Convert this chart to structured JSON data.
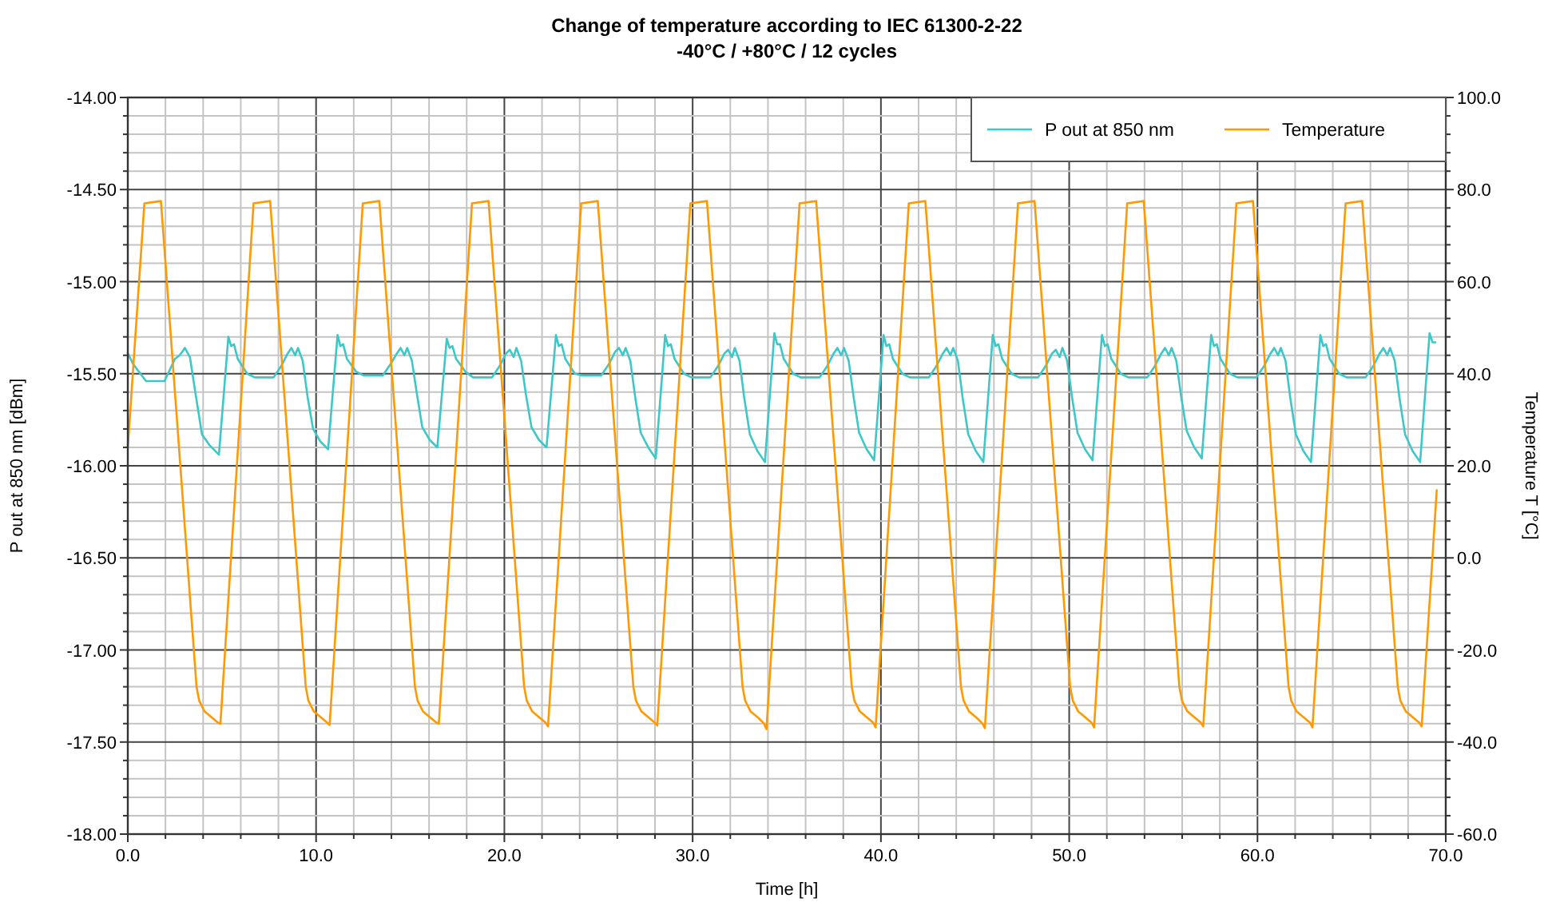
{
  "chart_data": {
    "type": "line",
    "title": "Change of temperature according to IEC 61300-2-22",
    "subtitle": "-40°C / +80°C / 12 cycles",
    "xlabel": "Time [h]",
    "ylabel": "P out at 850 nm [dBm]",
    "y2label": "Temperature T [°C]",
    "xlim": [
      0,
      70
    ],
    "ylim": [
      -18,
      -14
    ],
    "y2lim": [
      -60,
      100
    ],
    "xticks": [
      {
        "value": 0,
        "label": "0.0"
      },
      {
        "value": 2,
        "label": null
      },
      {
        "value": 4,
        "label": null
      },
      {
        "value": 6,
        "label": null
      },
      {
        "value": 8,
        "label": null
      },
      {
        "value": 10,
        "label": "10.0"
      },
      {
        "value": 12,
        "label": null
      },
      {
        "value": 14,
        "label": null
      },
      {
        "value": 16,
        "label": null
      },
      {
        "value": 18,
        "label": null
      },
      {
        "value": 20,
        "label": "20.0"
      },
      {
        "value": 22,
        "label": null
      },
      {
        "value": 24,
        "label": null
      },
      {
        "value": 26,
        "label": null
      },
      {
        "value": 28,
        "label": null
      },
      {
        "value": 30,
        "label": "30.0"
      },
      {
        "value": 32,
        "label": null
      },
      {
        "value": 34,
        "label": null
      },
      {
        "value": 36,
        "label": null
      },
      {
        "value": 38,
        "label": null
      },
      {
        "value": 40,
        "label": "40.0"
      },
      {
        "value": 42,
        "label": null
      },
      {
        "value": 44,
        "label": null
      },
      {
        "value": 46,
        "label": null
      },
      {
        "value": 48,
        "label": null
      },
      {
        "value": 50,
        "label": "50.0"
      },
      {
        "value": 52,
        "label": null
      },
      {
        "value": 54,
        "label": null
      },
      {
        "value": 56,
        "label": null
      },
      {
        "value": 58,
        "label": null
      },
      {
        "value": 60,
        "label": "60.0"
      },
      {
        "value": 62,
        "label": null
      },
      {
        "value": 64,
        "label": null
      },
      {
        "value": 66,
        "label": null
      },
      {
        "value": 68,
        "label": null
      },
      {
        "value": 70,
        "label": "70.0"
      }
    ],
    "yticks": [
      {
        "value": -18,
        "label": "-18.00"
      },
      {
        "value": -17.9,
        "label": null
      },
      {
        "value": -17.8,
        "label": null
      },
      {
        "value": -17.7,
        "label": null
      },
      {
        "value": -17.6,
        "label": null
      },
      {
        "value": -17.5,
        "label": "-17.50"
      },
      {
        "value": -17.4,
        "label": null
      },
      {
        "value": -17.3,
        "label": null
      },
      {
        "value": -17.2,
        "label": null
      },
      {
        "value": -17.1,
        "label": null
      },
      {
        "value": -17,
        "label": "-17.00"
      },
      {
        "value": -16.9,
        "label": null
      },
      {
        "value": -16.8,
        "label": null
      },
      {
        "value": -16.7,
        "label": null
      },
      {
        "value": -16.6,
        "label": null
      },
      {
        "value": -16.5,
        "label": "-16.50"
      },
      {
        "value": -16.4,
        "label": null
      },
      {
        "value": -16.3,
        "label": null
      },
      {
        "value": -16.2,
        "label": null
      },
      {
        "value": -16.1,
        "label": null
      },
      {
        "value": -16,
        "label": "-16.00"
      },
      {
        "value": -15.9,
        "label": null
      },
      {
        "value": -15.8,
        "label": null
      },
      {
        "value": -15.7,
        "label": null
      },
      {
        "value": -15.6,
        "label": null
      },
      {
        "value": -15.5,
        "label": "-15.50"
      },
      {
        "value": -15.4,
        "label": null
      },
      {
        "value": -15.3,
        "label": null
      },
      {
        "value": -15.2,
        "label": null
      },
      {
        "value": -15.1,
        "label": null
      },
      {
        "value": -15,
        "label": "-15.00"
      },
      {
        "value": -14.9,
        "label": null
      },
      {
        "value": -14.8,
        "label": null
      },
      {
        "value": -14.7,
        "label": null
      },
      {
        "value": -14.6,
        "label": null
      },
      {
        "value": -14.5,
        "label": "-14.50"
      },
      {
        "value": -14.4,
        "label": null
      },
      {
        "value": -14.3,
        "label": null
      },
      {
        "value": -14.2,
        "label": null
      },
      {
        "value": -14.1,
        "label": null
      },
      {
        "value": -14,
        "label": "-14.00"
      }
    ],
    "y2ticks": [
      {
        "value": -60,
        "label": "-60.0"
      },
      {
        "value": -56,
        "label": null
      },
      {
        "value": -52,
        "label": null
      },
      {
        "value": -48,
        "label": null
      },
      {
        "value": -44,
        "label": null
      },
      {
        "value": -40,
        "label": "-40.0"
      },
      {
        "value": -36,
        "label": null
      },
      {
        "value": -32,
        "label": null
      },
      {
        "value": -28,
        "label": null
      },
      {
        "value": -24,
        "label": null
      },
      {
        "value": -20,
        "label": "-20.0"
      },
      {
        "value": -16,
        "label": null
      },
      {
        "value": -12,
        "label": null
      },
      {
        "value": -8,
        "label": null
      },
      {
        "value": -4,
        "label": null
      },
      {
        "value": 0,
        "label": "0.0"
      },
      {
        "value": 4,
        "label": null
      },
      {
        "value": 8,
        "label": null
      },
      {
        "value": 12,
        "label": null
      },
      {
        "value": 16,
        "label": null
      },
      {
        "value": 20,
        "label": "20.0"
      },
      {
        "value": 24,
        "label": null
      },
      {
        "value": 28,
        "label": null
      },
      {
        "value": 32,
        "label": null
      },
      {
        "value": 36,
        "label": null
      },
      {
        "value": 40,
        "label": "40.0"
      },
      {
        "value": 44,
        "label": null
      },
      {
        "value": 48,
        "label": null
      },
      {
        "value": 52,
        "label": null
      },
      {
        "value": 56,
        "label": null
      },
      {
        "value": 60,
        "label": "60.0"
      },
      {
        "value": 64,
        "label": null
      },
      {
        "value": 68,
        "label": null
      },
      {
        "value": 72,
        "label": null
      },
      {
        "value": 76,
        "label": null
      },
      {
        "value": 80,
        "label": "80.0"
      },
      {
        "value": 84,
        "label": null
      },
      {
        "value": 88,
        "label": null
      },
      {
        "value": 92,
        "label": null
      },
      {
        "value": 96,
        "label": null
      },
      {
        "value": 100,
        "label": "100.0"
      }
    ],
    "grid": true,
    "legend": "top right",
    "series": [
      {
        "name": "P out at 850 nm",
        "color": "#3cc8c8",
        "x": [
          0,
          0.3,
          0.97,
          1.95,
          2.5,
          2.75,
          2.9,
          3.03,
          3.3,
          3.6,
          3.94,
          4.36,
          4.84,
          5.34,
          5.49,
          5.64,
          5.84,
          6.34,
          6.74,
          7.74,
          8.14,
          8.49,
          8.69,
          8.89,
          9.04,
          9.29,
          9.54,
          9.84,
          10.24,
          10.64,
          11.14,
          11.29,
          11.44,
          11.64,
          12.14,
          12.54,
          13.54,
          13.94,
          14.29,
          14.49,
          14.69,
          14.84,
          15.09,
          15.34,
          15.64,
          16.04,
          16.44,
          16.94,
          17.09,
          17.24,
          17.44,
          17.94,
          18.34,
          19.34,
          19.74,
          20.09,
          20.29,
          20.49,
          20.64,
          20.89,
          21.14,
          21.44,
          21.84,
          22.24,
          22.74,
          22.89,
          23.04,
          23.24,
          23.74,
          24.14,
          25.14,
          25.54,
          25.89,
          26.09,
          26.29,
          26.44,
          26.69,
          26.94,
          27.24,
          27.64,
          28.04,
          28.54,
          28.69,
          28.84,
          29.04,
          29.54,
          29.94,
          30.94,
          31.34,
          31.69,
          31.89,
          32.09,
          32.24,
          32.49,
          32.74,
          33.04,
          33.44,
          33.84,
          34.34,
          34.49,
          34.64,
          34.84,
          35.34,
          35.74,
          36.74,
          37.14,
          37.49,
          37.69,
          37.89,
          38.04,
          38.29,
          38.54,
          38.84,
          39.24,
          39.64,
          40.14,
          40.29,
          40.44,
          40.64,
          41.14,
          41.54,
          42.54,
          42.94,
          43.29,
          43.49,
          43.69,
          43.84,
          44.09,
          44.34,
          44.64,
          45.04,
          45.44,
          45.94,
          46.09,
          46.24,
          46.44,
          46.94,
          47.34,
          48.34,
          48.74,
          49.09,
          49.29,
          49.49,
          49.64,
          49.89,
          50.14,
          50.44,
          50.84,
          51.24,
          51.74,
          51.89,
          52.04,
          52.24,
          52.74,
          53.14,
          54.14,
          54.54,
          54.89,
          55.09,
          55.29,
          55.44,
          55.69,
          55.94,
          56.24,
          56.64,
          57.04,
          57.54,
          57.69,
          57.84,
          58.04,
          58.54,
          58.94,
          59.94,
          60.34,
          60.69,
          60.89,
          61.09,
          61.24,
          61.49,
          61.74,
          62.04,
          62.44,
          62.84,
          63.34,
          63.49,
          63.64,
          63.84,
          64.34,
          64.74,
          65.74,
          66.14,
          66.49,
          66.69,
          66.89,
          67.04,
          67.29,
          67.54,
          67.84,
          68.24,
          68.64,
          69.14,
          69.3,
          69.45
        ],
        "values": [
          -15.39,
          -15.45,
          -15.54,
          -15.54,
          -15.42,
          -15.4,
          -15.38,
          -15.36,
          -15.41,
          -15.61,
          -15.83,
          -15.89,
          -15.94,
          -15.3,
          -15.35,
          -15.34,
          -15.42,
          -15.5,
          -15.52,
          -15.52,
          -15.46,
          -15.39,
          -15.36,
          -15.4,
          -15.36,
          -15.43,
          -15.62,
          -15.8,
          -15.87,
          -15.91,
          -15.29,
          -15.35,
          -15.34,
          -15.42,
          -15.49,
          -15.51,
          -15.51,
          -15.45,
          -15.39,
          -15.36,
          -15.4,
          -15.36,
          -15.43,
          -15.6,
          -15.79,
          -15.86,
          -15.9,
          -15.31,
          -15.36,
          -15.35,
          -15.42,
          -15.49,
          -15.52,
          -15.52,
          -15.46,
          -15.39,
          -15.37,
          -15.41,
          -15.36,
          -15.43,
          -15.61,
          -15.79,
          -15.86,
          -15.9,
          -15.29,
          -15.35,
          -15.34,
          -15.42,
          -15.5,
          -15.51,
          -15.51,
          -15.45,
          -15.38,
          -15.36,
          -15.4,
          -15.36,
          -15.43,
          -15.62,
          -15.82,
          -15.9,
          -15.96,
          -15.29,
          -15.35,
          -15.34,
          -15.42,
          -15.5,
          -15.52,
          -15.52,
          -15.46,
          -15.39,
          -15.37,
          -15.41,
          -15.36,
          -15.43,
          -15.63,
          -15.83,
          -15.92,
          -15.98,
          -15.28,
          -15.34,
          -15.34,
          -15.42,
          -15.5,
          -15.52,
          -15.52,
          -15.46,
          -15.39,
          -15.36,
          -15.4,
          -15.36,
          -15.43,
          -15.62,
          -15.82,
          -15.91,
          -15.97,
          -15.29,
          -15.35,
          -15.34,
          -15.42,
          -15.5,
          -15.52,
          -15.52,
          -15.46,
          -15.39,
          -15.36,
          -15.4,
          -15.36,
          -15.43,
          -15.63,
          -15.83,
          -15.92,
          -15.98,
          -15.29,
          -15.35,
          -15.34,
          -15.42,
          -15.5,
          -15.52,
          -15.52,
          -15.46,
          -15.39,
          -15.37,
          -15.41,
          -15.36,
          -15.43,
          -15.62,
          -15.82,
          -15.91,
          -15.97,
          -15.29,
          -15.35,
          -15.34,
          -15.42,
          -15.5,
          -15.52,
          -15.52,
          -15.46,
          -15.39,
          -15.36,
          -15.4,
          -15.36,
          -15.43,
          -15.62,
          -15.81,
          -15.9,
          -15.96,
          -15.29,
          -15.35,
          -15.34,
          -15.42,
          -15.5,
          -15.52,
          -15.52,
          -15.46,
          -15.39,
          -15.36,
          -15.4,
          -15.36,
          -15.43,
          -15.63,
          -15.83,
          -15.92,
          -15.98,
          -15.29,
          -15.35,
          -15.34,
          -15.42,
          -15.5,
          -15.52,
          -15.52,
          -15.46,
          -15.39,
          -15.36,
          -15.4,
          -15.36,
          -15.43,
          -15.63,
          -15.83,
          -15.92,
          -15.98,
          -15.28,
          -15.33,
          -15.33
        ]
      },
      {
        "name": "Temperature",
        "color": "#ff9900",
        "axis": "y2",
        "x": [
          0,
          0.88,
          1.76,
          3.65,
          3.79,
          4.07,
          4.5,
          4.79,
          4.92,
          6.68,
          7.56,
          9.45,
          9.59,
          9.87,
          10.3,
          10.59,
          10.72,
          12.48,
          13.36,
          15.25,
          15.39,
          15.67,
          16.1,
          16.39,
          16.52,
          18.28,
          19.16,
          21.05,
          21.19,
          21.47,
          21.9,
          22.19,
          22.32,
          24.08,
          24.96,
          26.85,
          26.99,
          27.27,
          27.7,
          27.99,
          28.12,
          29.88,
          30.76,
          32.65,
          32.79,
          33.07,
          33.5,
          33.79,
          33.92,
          35.68,
          36.56,
          38.45,
          38.59,
          38.87,
          39.3,
          39.59,
          39.72,
          41.48,
          42.36,
          44.25,
          44.39,
          44.67,
          45.1,
          45.39,
          45.52,
          47.28,
          48.16,
          50.05,
          50.19,
          50.47,
          50.9,
          51.19,
          51.32,
          53.08,
          53.96,
          55.85,
          55.99,
          56.27,
          56.7,
          56.99,
          57.12,
          58.88,
          59.76,
          61.65,
          61.79,
          62.07,
          62.5,
          62.79,
          62.92,
          64.68,
          65.56,
          67.45,
          67.59,
          67.87,
          68.3,
          68.59,
          68.72,
          69.52
        ],
        "values": [
          24,
          77,
          77.5,
          -28,
          -31,
          -33.3,
          -34.8,
          -35.8,
          -36,
          77,
          77.5,
          -28,
          -31,
          -33.3,
          -34.8,
          -35.8,
          -36.3,
          77,
          77.5,
          -28,
          -31,
          -33.3,
          -34.8,
          -35.8,
          -36,
          77,
          77.5,
          -28,
          -31,
          -33.3,
          -34.8,
          -35.8,
          -36.6,
          77,
          77.5,
          -28,
          -31,
          -33.3,
          -34.8,
          -35.8,
          -36.4,
          77,
          77.5,
          -28,
          -31,
          -33.3,
          -34.8,
          -36,
          -37.2,
          77,
          77.5,
          -28,
          -31,
          -33.3,
          -34.8,
          -35.8,
          -36.8,
          77,
          77.5,
          -28,
          -31,
          -33.3,
          -34.8,
          -36,
          -37,
          77,
          77.5,
          -28,
          -31,
          -33.3,
          -34.8,
          -35.8,
          -36.8,
          77,
          77.5,
          -28,
          -31,
          -33.3,
          -34.8,
          -35.8,
          -36.6,
          77,
          77.5,
          -28,
          -31,
          -33.3,
          -34.8,
          -35.8,
          -36.8,
          77,
          77.5,
          -28,
          -31,
          -33.3,
          -34.8,
          -35.8,
          -36.6,
          14.7
        ]
      }
    ]
  }
}
